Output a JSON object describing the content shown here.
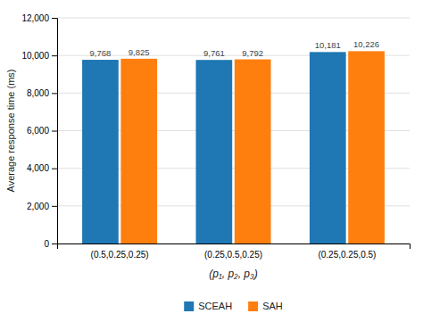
{
  "chart_data": {
    "type": "bar",
    "categories": [
      "(0.5,0.25,0.25)",
      "(0.25,0.5,0.25)",
      "(0.25,0.25,0.5)"
    ],
    "series": [
      {
        "name": "SCEAH",
        "values": [
          9768,
          9761,
          10181
        ],
        "value_labels": [
          "9,768",
          "9,761",
          "10,181"
        ]
      },
      {
        "name": "SAH",
        "values": [
          9825,
          9792,
          10226
        ],
        "value_labels": [
          "9,825",
          "9,792",
          "10,226"
        ]
      }
    ],
    "xlabel": "(p₁, p₂, p₃)",
    "ylabel": "Average response time (ms)",
    "ylim": [
      0,
      12000
    ],
    "yticks": [
      0,
      {
        "value": 2000,
        "label": "2,000"
      },
      {
        "value": 4000,
        "label": "4,000"
      },
      {
        "value": 6000,
        "label": "6,000"
      },
      {
        "value": 8000,
        "label": "8,000"
      },
      {
        "value": 10000,
        "label": "10,000"
      },
      {
        "value": 12000,
        "label": "12,000"
      }
    ],
    "grid": true,
    "legend": "bottom",
    "data_labels": true
  }
}
